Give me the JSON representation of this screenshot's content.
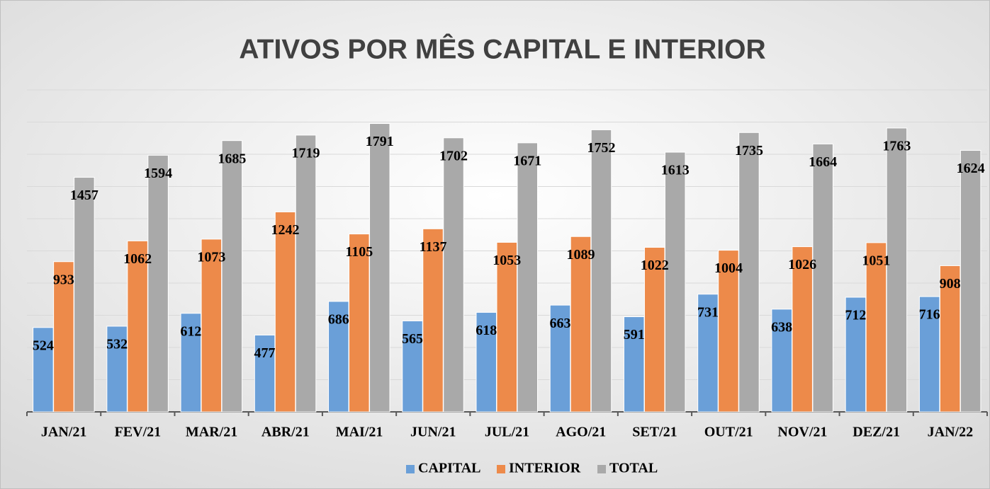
{
  "chart_data": {
    "type": "bar",
    "title": "ATIVOS POR MÊS CAPITAL E INTERIOR",
    "categories": [
      "JAN/21",
      "FEV/21",
      "MAR/21",
      "ABR/21",
      "MAI/21",
      "JUN/21",
      "JUL/21",
      "AGO/21",
      "SET/21",
      "OUT/21",
      "NOV/21",
      "DEZ/21",
      "JAN/22"
    ],
    "series": [
      {
        "name": "CAPITAL",
        "color": "#6a9fd8",
        "values": [
          524,
          532,
          612,
          477,
          686,
          565,
          618,
          663,
          591,
          731,
          638,
          712,
          716
        ]
      },
      {
        "name": "INTERIOR",
        "color": "#ed8a4a",
        "values": [
          933,
          1062,
          1073,
          1242,
          1105,
          1137,
          1053,
          1089,
          1022,
          1004,
          1026,
          1051,
          908
        ]
      },
      {
        "name": "TOTAL",
        "color": "#a9a9a9",
        "values": [
          1457,
          1594,
          1685,
          1719,
          1791,
          1702,
          1671,
          1752,
          1613,
          1735,
          1664,
          1763,
          1624
        ]
      }
    ],
    "ylim": [
      0,
      2000
    ],
    "yticks": [
      0,
      200,
      400,
      600,
      800,
      1000,
      1200,
      1400,
      1600,
      1800,
      2000
    ],
    "grid": true,
    "legend": "bottom"
  }
}
